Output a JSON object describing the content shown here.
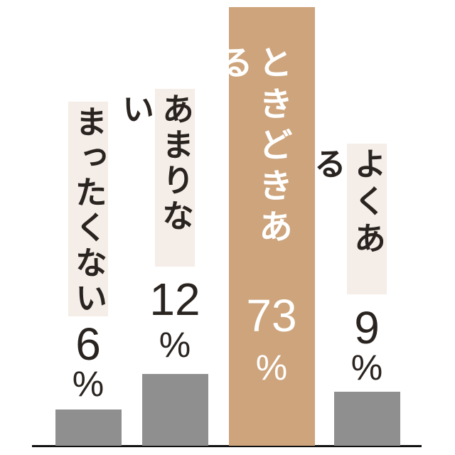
{
  "chart_data": {
    "type": "bar",
    "orientation": "vertical",
    "title": "",
    "xlabel": "",
    "ylabel": "",
    "ylim": [
      0,
      100
    ],
    "axis": "baseline only — no ticks, no gridlines, no value axis",
    "legend": "none",
    "unit": "%",
    "categories": [
      "まったくない",
      "あまりない",
      "ときどきある",
      "よくある"
    ],
    "values": [
      6,
      12,
      73,
      9
    ],
    "highlight_index": 2,
    "colors": {
      "bar": "#8f8f8f",
      "bar_highlight": "#cda47c",
      "label_background": "#f4ede8",
      "text": "#2a2420",
      "highlight_text": "#ffffff",
      "baseline": "#111111"
    },
    "bars": [
      {
        "label": "まったくない",
        "value": 6,
        "display_value": "6",
        "unit": "%",
        "highlighted": false
      },
      {
        "label": "あまりない",
        "value": 12,
        "display_value": "12",
        "unit": "%",
        "highlighted": false
      },
      {
        "label": "ときどきある",
        "value": 73,
        "display_value": "73",
        "unit": "%",
        "highlighted": true
      },
      {
        "label": "よくある",
        "value": 9,
        "display_value": "9",
        "unit": "%",
        "highlighted": false
      }
    ]
  }
}
